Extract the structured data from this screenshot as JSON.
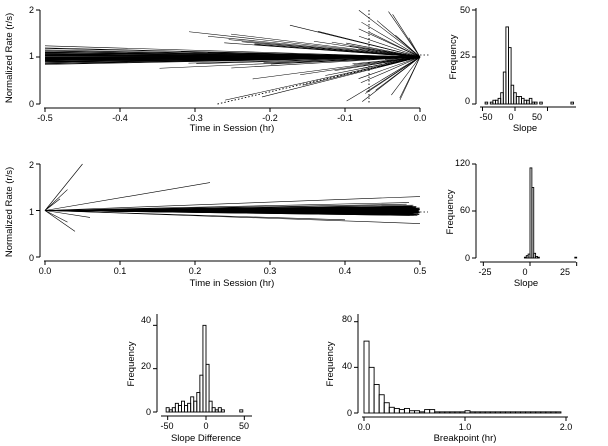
{
  "chart_data": [
    {
      "id": "rate_before_end",
      "type": "line",
      "xlabel": "Time in Session (hr)",
      "ylabel": "Normalized Rate (r/s)",
      "xlim": [
        -0.5,
        0.0
      ],
      "ylim": [
        0,
        2
      ],
      "xticks": [
        "-0.5",
        "-0.4",
        "-0.3",
        "-0.2",
        "-0.1",
        "0.0"
      ],
      "yticks": [
        "0",
        "1",
        "2"
      ],
      "anchor": {
        "x": 0.0,
        "y": 1.0
      },
      "reference_line": {
        "y": 1.0,
        "style": "dotted"
      },
      "vertical_marker": {
        "x": -0.068,
        "style": "dotted"
      },
      "example_dotted_line": {
        "x0": -0.27,
        "y0": 0.0,
        "x1": 0.0,
        "y1": 1.0
      },
      "fan_series_description_count": 150
    },
    {
      "id": "slope_hist_top",
      "type": "bar",
      "xlabel": "Slope",
      "ylabel": "Frequency",
      "xlim": [
        -60,
        100
      ],
      "ylim": [
        0,
        50
      ],
      "xticks": [
        "-50",
        "0",
        "50"
      ],
      "yticks": [
        "0",
        "25",
        "50"
      ],
      "bin_start": -50,
      "bin_width": 4,
      "values": [
        0,
        1,
        0,
        1,
        2,
        2,
        3,
        6,
        17,
        41,
        30,
        10,
        6,
        4,
        4,
        3,
        2,
        2,
        3,
        1,
        1,
        0,
        1,
        0,
        0,
        0,
        0,
        0,
        0,
        0,
        0,
        0,
        0,
        0,
        1,
        0
      ]
    },
    {
      "id": "rate_after_start",
      "type": "line",
      "xlabel": "Time in Session (hr)",
      "ylabel": "Normalized Rate (r/s)",
      "xlim": [
        0.0,
        0.5
      ],
      "ylim": [
        0,
        2
      ],
      "xticks": [
        "0.0",
        "0.1",
        "0.2",
        "0.3",
        "0.4",
        "0.5"
      ],
      "yticks": [
        "0",
        "1",
        "2"
      ],
      "anchor": {
        "x": 0.0,
        "y": 1.0
      },
      "reference_line": {
        "y": 1.0,
        "style": "dotted"
      }
    },
    {
      "id": "slope_hist_middle",
      "type": "bar",
      "xlabel": "Slope",
      "ylabel": "Frequency",
      "xlim": [
        -30,
        30
      ],
      "ylim": [
        0,
        120
      ],
      "xticks": [
        "-25",
        "0",
        "25"
      ],
      "yticks": [
        "0",
        "60",
        "120"
      ],
      "bin_start": -26,
      "bin_width": 1,
      "values": [
        0,
        0,
        0,
        0,
        0,
        0,
        0,
        0,
        0,
        0,
        0,
        0,
        0,
        0,
        0,
        0,
        0,
        0,
        0,
        0,
        0,
        0,
        0,
        1,
        3,
        5,
        115,
        90,
        6,
        2,
        1,
        0,
        0,
        0,
        0,
        0,
        0,
        0,
        0,
        0,
        0,
        0,
        0,
        0,
        0,
        0,
        0,
        0,
        0,
        0,
        1,
        0
      ]
    },
    {
      "id": "slope_difference_hist",
      "type": "bar",
      "xlabel": "Slope Difference",
      "ylabel": "Frequency",
      "xlim": [
        -60,
        60
      ],
      "ylim": [
        0,
        42
      ],
      "xticks": [
        "-50",
        "0",
        "50"
      ],
      "yticks": [
        "0",
        "20",
        "40"
      ],
      "bin_start": -56,
      "bin_width": 4,
      "values": [
        0,
        2,
        1,
        2,
        4,
        3,
        5,
        3,
        4,
        7,
        5,
        9,
        17,
        40,
        22,
        5,
        2,
        1,
        2,
        1,
        0,
        0,
        0,
        0,
        0,
        1,
        0,
        0,
        0
      ]
    },
    {
      "id": "breakpoint_hist",
      "type": "bar",
      "xlabel": "Breakpoint (hr)",
      "ylabel": "Frequency",
      "xlim": [
        0.0,
        2.0
      ],
      "ylim": [
        0,
        85
      ],
      "xticks": [
        "0.0",
        "1.0",
        "2.0"
      ],
      "yticks": [
        "0",
        "40",
        "80"
      ],
      "bin_start": 0.0,
      "bin_width": 0.05,
      "values": [
        63,
        40,
        25,
        16,
        9,
        5,
        4,
        3,
        4,
        2,
        2,
        1,
        3,
        3,
        1,
        1,
        1,
        1,
        1,
        1,
        2,
        1,
        1,
        1,
        1,
        1,
        1,
        1,
        1,
        1,
        1,
        1,
        1,
        1,
        1,
        1,
        1,
        1,
        1,
        0
      ]
    }
  ]
}
